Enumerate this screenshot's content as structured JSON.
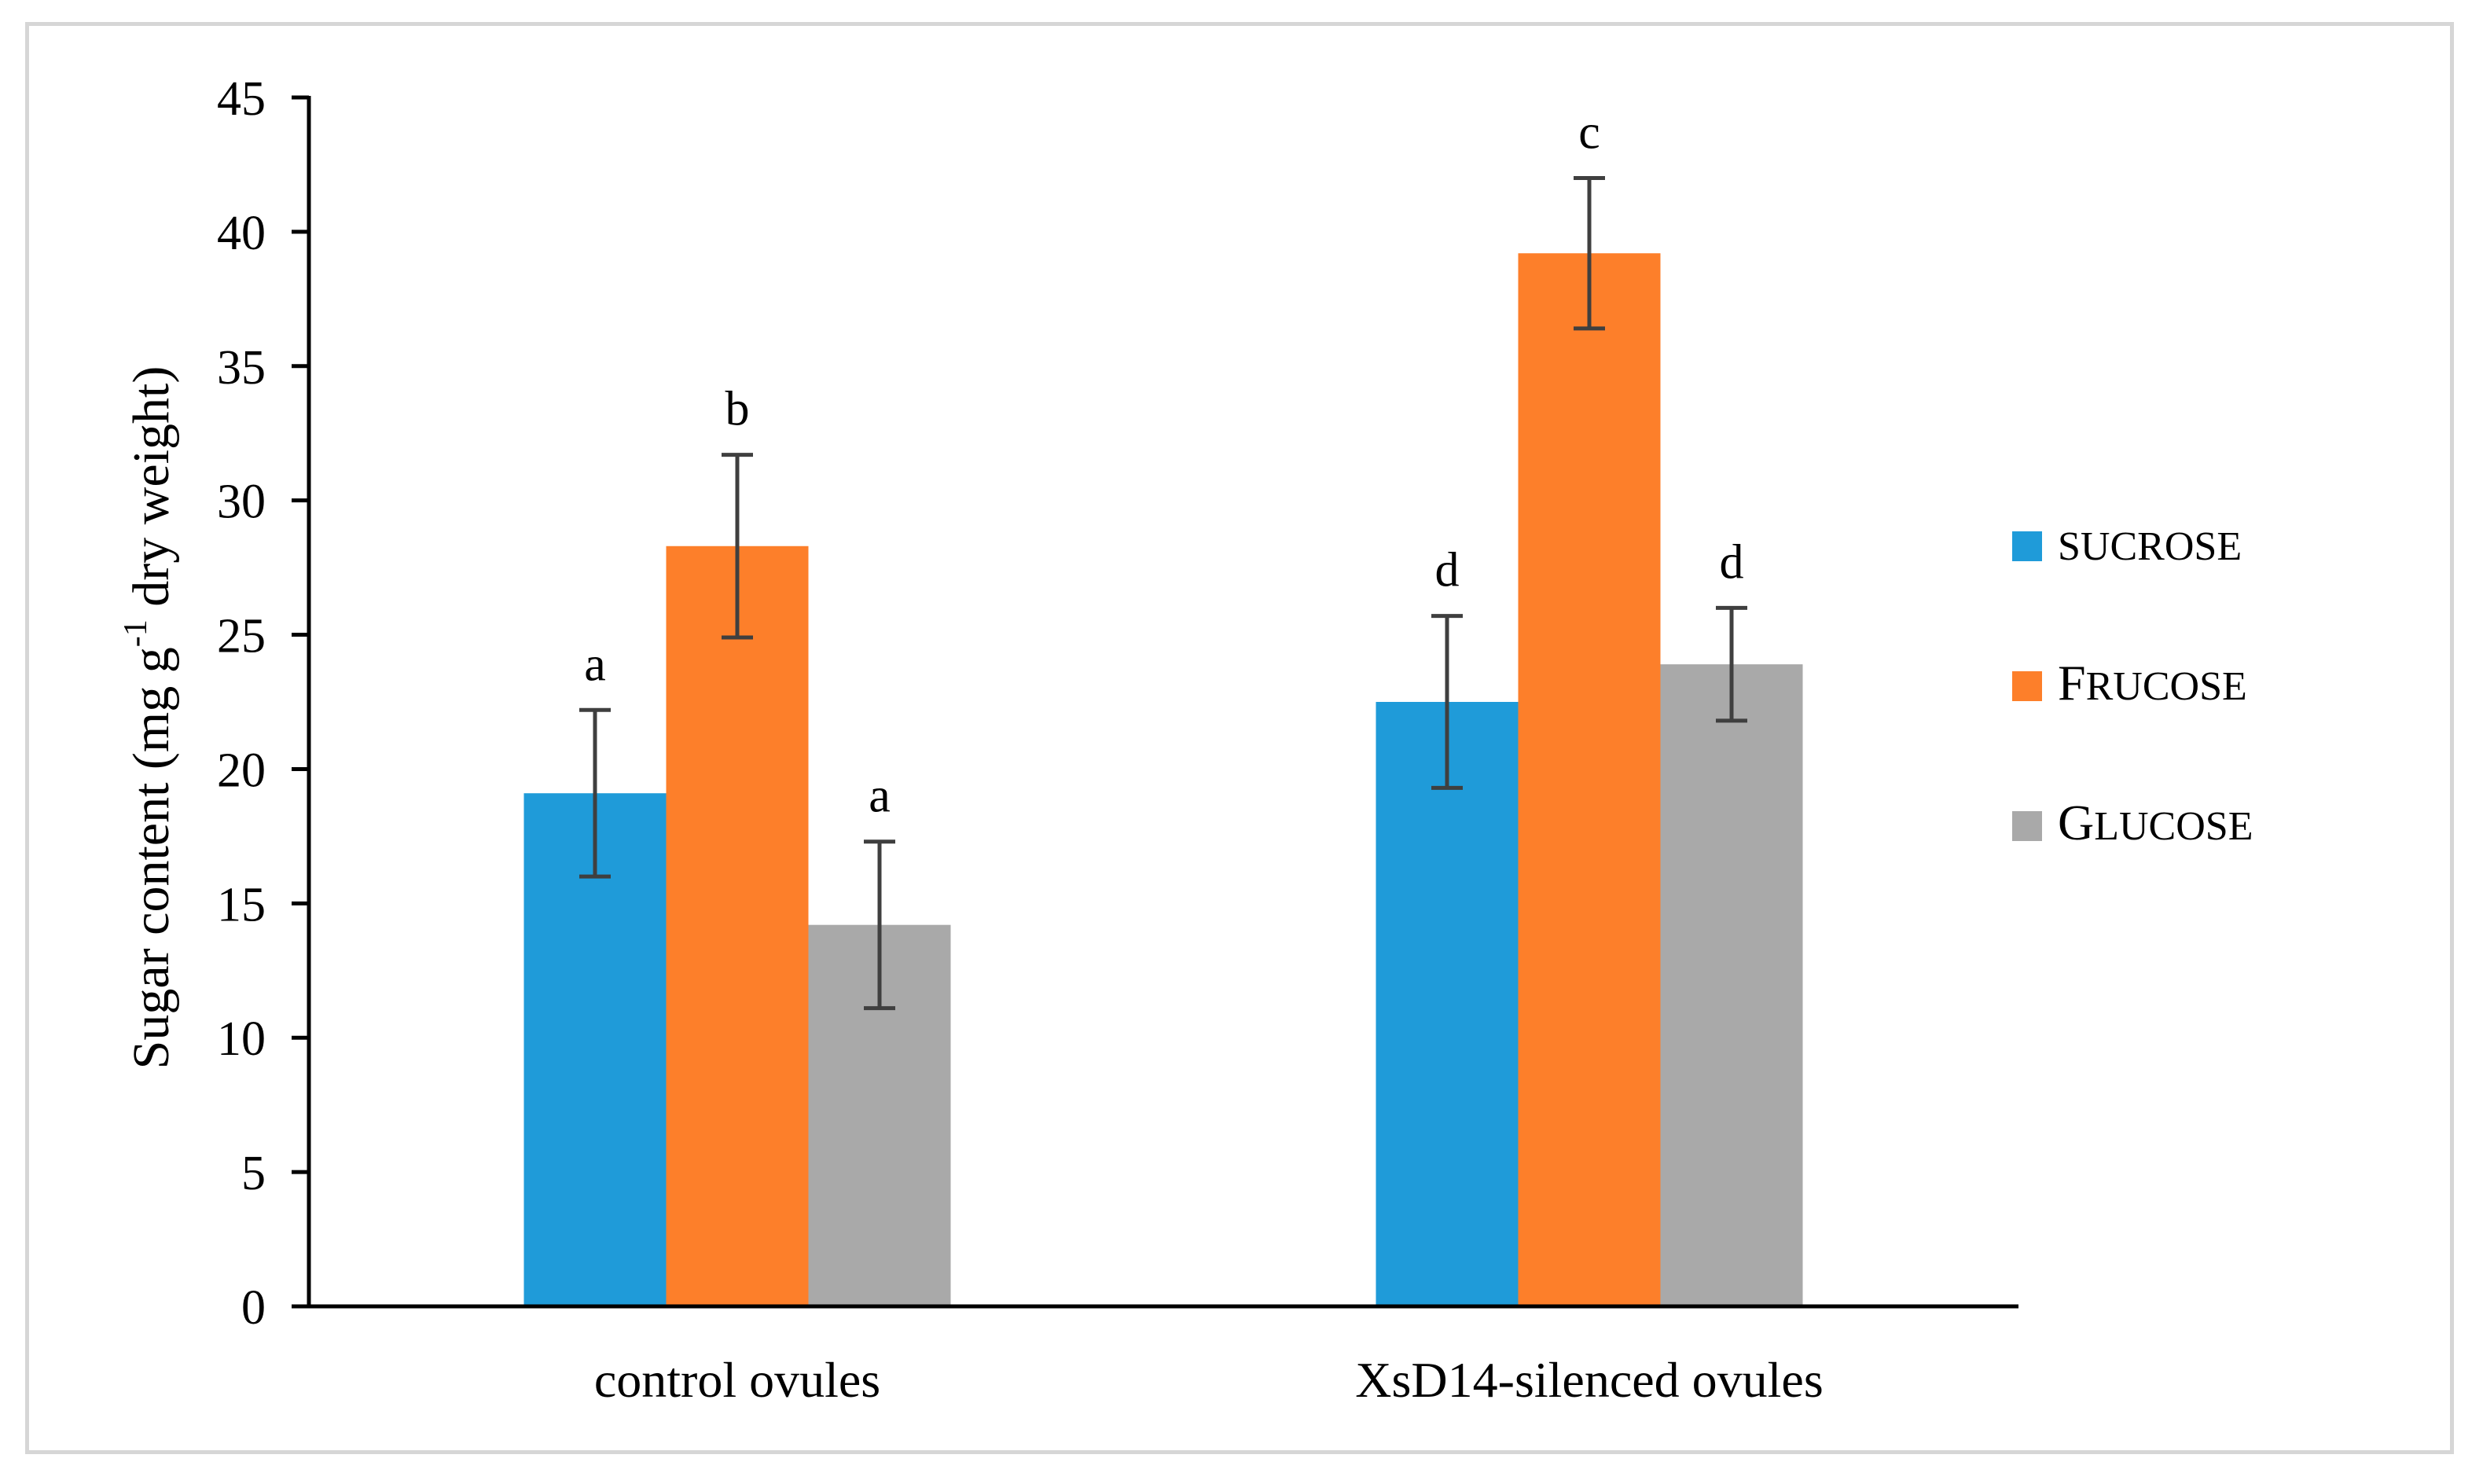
{
  "chart_data": {
    "type": "bar",
    "title": "",
    "xlabel": "",
    "ylabel": {
      "main": "Sugar content (mg g",
      "sup": "-1",
      "rest": " dry weight)"
    },
    "ylim": [
      0,
      45
    ],
    "yticks": [
      0,
      5,
      10,
      15,
      20,
      25,
      30,
      35,
      40,
      45
    ],
    "grid": false,
    "legend_position": "right",
    "categories": [
      "control ovules",
      "XsD14-silenced ovules"
    ],
    "series": [
      {
        "name": "SUCROSE",
        "legend_first": "",
        "legend_rest": "SUCROSE",
        "color": "#1f9bd9",
        "values": [
          19.1,
          22.5
        ],
        "errors": [
          3.1,
          3.2
        ],
        "sig_letters": [
          "a",
          "d"
        ]
      },
      {
        "name": "FRUCOSE",
        "legend_first": "F",
        "legend_rest": "RUCOSE",
        "color": "#fd7f2a",
        "values": [
          28.3,
          39.2
        ],
        "errors": [
          3.4,
          2.8
        ],
        "sig_letters": [
          "b",
          "c"
        ]
      },
      {
        "name": "GLUCOSE",
        "legend_first": "G",
        "legend_rest": "LUCOSE",
        "color": "#a9a9a9",
        "values": [
          14.2,
          23.9
        ],
        "errors": [
          3.1,
          2.1
        ],
        "sig_letters": [
          "a",
          "d"
        ]
      }
    ],
    "error_bar_color": "#3f3f3f",
    "axis_color": "#000000"
  }
}
